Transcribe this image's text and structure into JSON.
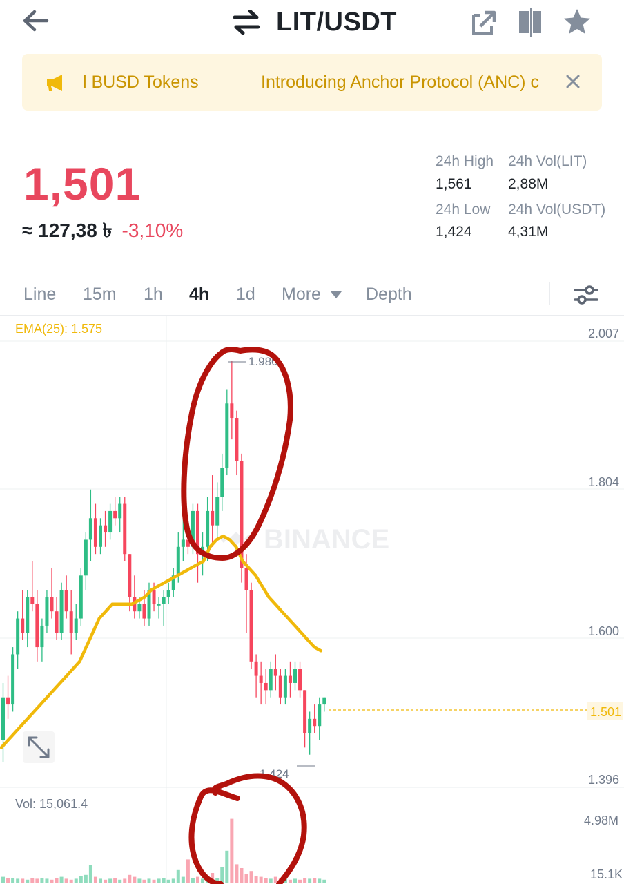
{
  "header": {
    "pair": "LIT/USDT",
    "icons": [
      "arrow-left-icon",
      "swap-arrows-icon",
      "share-icon",
      "layout-icon",
      "star-icon"
    ]
  },
  "announcement": {
    "text_1": "l BUSD Tokens",
    "text_2": "Introducing Anchor Protocol (ANC) c",
    "close_icon": "close-icon"
  },
  "ticker": {
    "last_price": "1,501",
    "fiat_value": "≈ 127,38 ৳",
    "change_pct": "-3,10%",
    "high_label": "24h High",
    "high_value": "1,561",
    "low_label": "24h Low",
    "low_value": "1,424",
    "vol_base_label": "24h Vol(LIT)",
    "vol_base_value": "2,88M",
    "vol_quote_label": "24h Vol(USDT)",
    "vol_quote_value": "4,31M"
  },
  "tabs": [
    {
      "label": "Line",
      "active": false
    },
    {
      "label": "15m",
      "active": false
    },
    {
      "label": "1h",
      "active": false
    },
    {
      "label": "4h",
      "active": true
    },
    {
      "label": "1d",
      "active": false
    },
    {
      "label": "More",
      "active": false
    },
    {
      "label": "Depth",
      "active": false
    }
  ],
  "chart_data": {
    "type": "candlestick",
    "ema_label": "EMA(25): 1.575",
    "price_axis": [
      "2.007",
      "1.804",
      "1.600",
      "1.396"
    ],
    "current_price_label": "1.501",
    "high_marker": "1.980",
    "low_marker": "1.424",
    "watermark": "BINANCE",
    "volume_label": "Vol: 15,061.4",
    "volume_axis": [
      "4.98M",
      "15.1K"
    ],
    "colors": {
      "up": "#2ebd85",
      "down": "#f6465d",
      "ema": "#f0b90b",
      "annotation": "#b3120c"
    },
    "ylim": [
      1.396,
      2.007
    ],
    "candles": [
      [
        1.45,
        1.53,
        1.42,
        1.51
      ],
      [
        1.51,
        1.54,
        1.48,
        1.5
      ],
      [
        1.5,
        1.58,
        1.49,
        1.57
      ],
      [
        1.57,
        1.63,
        1.55,
        1.62
      ],
      [
        1.62,
        1.66,
        1.59,
        1.6
      ],
      [
        1.6,
        1.66,
        1.58,
        1.65
      ],
      [
        1.65,
        1.7,
        1.63,
        1.64
      ],
      [
        1.64,
        1.66,
        1.56,
        1.58
      ],
      [
        1.58,
        1.62,
        1.56,
        1.61
      ],
      [
        1.61,
        1.66,
        1.6,
        1.65
      ],
      [
        1.65,
        1.69,
        1.62,
        1.63
      ],
      [
        1.63,
        1.65,
        1.59,
        1.6
      ],
      [
        1.6,
        1.67,
        1.59,
        1.66
      ],
      [
        1.66,
        1.68,
        1.62,
        1.63
      ],
      [
        1.63,
        1.66,
        1.57,
        1.6
      ],
      [
        1.6,
        1.64,
        1.59,
        1.62
      ],
      [
        1.62,
        1.69,
        1.61,
        1.68
      ],
      [
        1.68,
        1.74,
        1.66,
        1.73
      ],
      [
        1.73,
        1.8,
        1.7,
        1.76
      ],
      [
        1.76,
        1.78,
        1.71,
        1.72
      ],
      [
        1.72,
        1.76,
        1.71,
        1.75
      ],
      [
        1.75,
        1.77,
        1.72,
        1.74
      ],
      [
        1.74,
        1.78,
        1.73,
        1.77
      ],
      [
        1.77,
        1.79,
        1.75,
        1.76
      ],
      [
        1.76,
        1.79,
        1.74,
        1.78
      ],
      [
        1.78,
        1.79,
        1.7,
        1.71
      ],
      [
        1.71,
        1.71,
        1.63,
        1.65
      ],
      [
        1.65,
        1.68,
        1.62,
        1.63
      ],
      [
        1.63,
        1.65,
        1.62,
        1.64
      ],
      [
        1.64,
        1.66,
        1.61,
        1.62
      ],
      [
        1.62,
        1.67,
        1.61,
        1.66
      ],
      [
        1.66,
        1.67,
        1.63,
        1.64
      ],
      [
        1.64,
        1.65,
        1.62,
        1.64
      ],
      [
        1.64,
        1.66,
        1.61,
        1.65
      ],
      [
        1.65,
        1.67,
        1.64,
        1.66
      ],
      [
        1.66,
        1.69,
        1.65,
        1.68
      ],
      [
        1.68,
        1.74,
        1.67,
        1.72
      ],
      [
        1.72,
        1.78,
        1.7,
        1.73
      ],
      [
        1.73,
        1.76,
        1.71,
        1.72
      ],
      [
        1.72,
        1.78,
        1.71,
        1.77
      ],
      [
        1.77,
        1.78,
        1.67,
        1.71
      ],
      [
        1.71,
        1.74,
        1.68,
        1.72
      ],
      [
        1.72,
        1.79,
        1.7,
        1.77
      ],
      [
        1.77,
        1.82,
        1.72,
        1.75
      ],
      [
        1.75,
        1.81,
        1.73,
        1.79
      ],
      [
        1.79,
        1.85,
        1.77,
        1.83
      ],
      [
        1.83,
        1.94,
        1.82,
        1.92
      ],
      [
        1.92,
        1.98,
        1.87,
        1.9
      ],
      [
        1.9,
        1.91,
        1.82,
        1.84
      ],
      [
        1.84,
        1.85,
        1.67,
        1.69
      ],
      [
        1.69,
        1.71,
        1.6,
        1.66
      ],
      [
        1.66,
        1.67,
        1.55,
        1.56
      ],
      [
        1.56,
        1.57,
        1.51,
        1.54
      ],
      [
        1.54,
        1.56,
        1.5,
        1.53
      ],
      [
        1.53,
        1.55,
        1.5,
        1.52
      ],
      [
        1.52,
        1.56,
        1.51,
        1.55
      ],
      [
        1.55,
        1.57,
        1.52,
        1.54
      ],
      [
        1.54,
        1.55,
        1.5,
        1.51
      ],
      [
        1.51,
        1.55,
        1.5,
        1.54
      ],
      [
        1.54,
        1.56,
        1.51,
        1.53
      ],
      [
        1.53,
        1.56,
        1.52,
        1.55
      ],
      [
        1.55,
        1.56,
        1.51,
        1.52
      ],
      [
        1.52,
        1.52,
        1.44,
        1.46
      ],
      [
        1.46,
        1.49,
        1.43,
        1.48
      ],
      [
        1.48,
        1.5,
        1.46,
        1.47
      ],
      [
        1.47,
        1.51,
        1.45,
        1.5
      ],
      [
        1.5,
        1.51,
        1.49,
        1.51
      ]
    ],
    "volumes": [
      0.06,
      0.05,
      0.05,
      0.04,
      0.04,
      0.03,
      0.05,
      0.04,
      0.05,
      0.04,
      0.03,
      0.05,
      0.06,
      0.04,
      0.03,
      0.04,
      0.07,
      0.08,
      0.18,
      0.06,
      0.04,
      0.03,
      0.04,
      0.05,
      0.03,
      0.04,
      0.08,
      0.06,
      0.04,
      0.03,
      0.04,
      0.03,
      0.04,
      0.05,
      0.03,
      0.04,
      0.13,
      0.06,
      0.24,
      0.05,
      0.06,
      0.04,
      0.07,
      0.1,
      0.05,
      0.16,
      0.33,
      0.66,
      0.19,
      0.15,
      0.09,
      0.12,
      0.07,
      0.06,
      0.05,
      0.04,
      0.06,
      0.05,
      0.04,
      0.03,
      0.04,
      0.03,
      0.05,
      0.04,
      0.05,
      0.04,
      0.03
    ],
    "ema": [
      1.44,
      1.45,
      1.46,
      1.47,
      1.48,
      1.49,
      1.5,
      1.51,
      1.52,
      1.53,
      1.54,
      1.55,
      1.56,
      1.58,
      1.6,
      1.62,
      1.63,
      1.64,
      1.64,
      1.64,
      1.64,
      1.645,
      1.65,
      1.66,
      1.665,
      1.67,
      1.675,
      1.68,
      1.685,
      1.69,
      1.695,
      1.7,
      1.72,
      1.73,
      1.735,
      1.73,
      1.72,
      1.7,
      1.69,
      1.68,
      1.665,
      1.65,
      1.64,
      1.63,
      1.62,
      1.61,
      1.6,
      1.59,
      1.58,
      1.575
    ]
  }
}
